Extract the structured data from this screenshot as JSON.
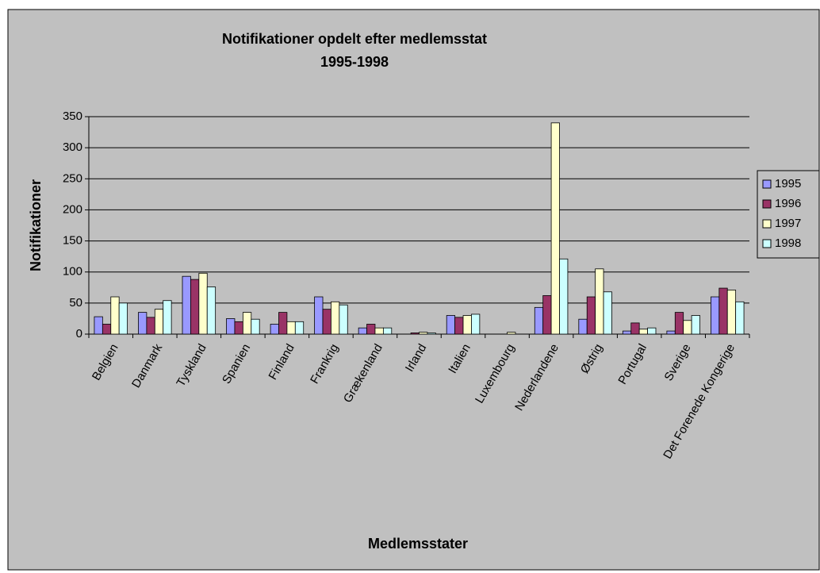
{
  "chart_data": {
    "type": "bar",
    "title": "Notifikationer opdelt efter medlemsstat",
    "subtitle": "1995-1998",
    "x_label": "Medlemsstater",
    "y_label": "Notifikationer",
    "categories": [
      "Belgien",
      "Danmark",
      "Tyskland",
      "Spanien",
      "Finland",
      "Frankrig",
      "Grækenland",
      "Irland",
      "Italien",
      "Luxembourg",
      "Nederlandene",
      "Østrig",
      "Portugal",
      "Sverige",
      "Det Forenede Kongerige"
    ],
    "series": [
      {
        "name": "1995",
        "color": "#9999ff",
        "values": [
          28,
          35,
          93,
          25,
          16,
          60,
          10,
          0,
          30,
          0,
          43,
          24,
          5,
          5,
          60
        ]
      },
      {
        "name": "1996",
        "color": "#993366",
        "values": [
          16,
          27,
          88,
          20,
          35,
          40,
          16,
          2,
          27,
          0,
          62,
          60,
          18,
          35,
          74
        ]
      },
      {
        "name": "1997",
        "color": "#ffffcc",
        "values": [
          60,
          40,
          98,
          35,
          20,
          52,
          10,
          3,
          30,
          3,
          340,
          105,
          8,
          22,
          71
        ]
      },
      {
        "name": "1998",
        "color": "#ccffff",
        "values": [
          50,
          54,
          76,
          24,
          20,
          47,
          10,
          2,
          32,
          0,
          121,
          68,
          10,
          30,
          52
        ]
      }
    ],
    "ylim": [
      0,
      350
    ],
    "yticks": [
      0,
      50,
      100,
      150,
      200,
      250,
      300,
      350
    ],
    "grid": true,
    "legend": "right"
  }
}
